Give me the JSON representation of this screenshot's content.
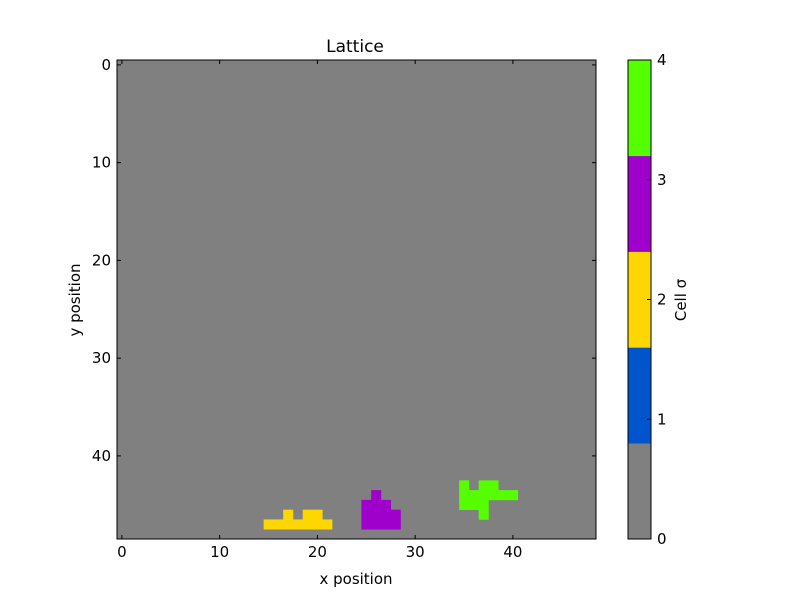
{
  "chart_data": {
    "type": "heatmap",
    "title": "Lattice",
    "xlabel": "x position",
    "ylabel": "y position",
    "xlim": [
      -0.5,
      48.5
    ],
    "ylim": [
      48.5,
      -0.5
    ],
    "x_ticks": [
      0,
      10,
      20,
      30,
      40
    ],
    "y_ticks": [
      0,
      10,
      20,
      30,
      40
    ],
    "grid": false,
    "background_value": 0,
    "cells": [
      {
        "sigma": 2,
        "pixels": [
          [
            17,
            46
          ],
          [
            19,
            46
          ],
          [
            20,
            46
          ],
          [
            15,
            47
          ],
          [
            16,
            47
          ],
          [
            17,
            47
          ],
          [
            18,
            47
          ],
          [
            19,
            47
          ],
          [
            20,
            47
          ],
          [
            21,
            47
          ]
        ]
      },
      {
        "sigma": 3,
        "pixels": [
          [
            26,
            44
          ],
          [
            25,
            45
          ],
          [
            26,
            45
          ],
          [
            27,
            45
          ],
          [
            25,
            46
          ],
          [
            26,
            46
          ],
          [
            27,
            46
          ],
          [
            28,
            46
          ],
          [
            25,
            47
          ],
          [
            26,
            47
          ],
          [
            27,
            47
          ],
          [
            28,
            47
          ]
        ]
      },
      {
        "sigma": 4,
        "pixels": [
          [
            35,
            43
          ],
          [
            37,
            43
          ],
          [
            38,
            43
          ],
          [
            35,
            44
          ],
          [
            36,
            44
          ],
          [
            37,
            44
          ],
          [
            38,
            44
          ],
          [
            39,
            44
          ],
          [
            40,
            44
          ],
          [
            35,
            45
          ],
          [
            36,
            45
          ],
          [
            37,
            45
          ],
          [
            37,
            46
          ]
        ]
      }
    ],
    "colorbar": {
      "label": "Cell σ",
      "range": [
        0,
        4
      ],
      "ticks": [
        0,
        1,
        2,
        3,
        4
      ],
      "levels": [
        {
          "sigma": 0,
          "color": "#808080"
        },
        {
          "sigma": 1,
          "color": "#0055cc"
        },
        {
          "sigma": 2,
          "color": "#ffd700"
        },
        {
          "sigma": 3,
          "color": "#a000cc"
        },
        {
          "sigma": 4,
          "color": "#55ff00"
        }
      ]
    }
  }
}
